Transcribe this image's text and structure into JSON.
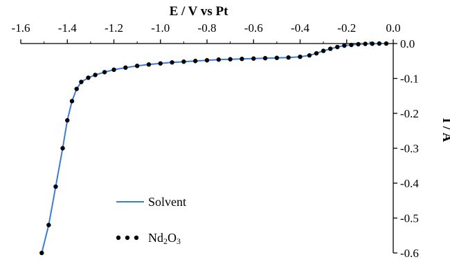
{
  "chart_data": {
    "type": "line",
    "xlabel": "E / V vs Pt",
    "ylabel": "I / A",
    "xlim": [
      -1.6,
      0.0
    ],
    "ylim": [
      -0.6,
      0.0
    ],
    "x_ticks": [
      "-1.6",
      "-1.4",
      "-1.2",
      "-1.0",
      "-0.8",
      "-0.6",
      "-0.4",
      "-0.2",
      "0.0"
    ],
    "y_ticks": [
      "0.0",
      "-0.1",
      "-0.2",
      "-0.3",
      "-0.4",
      "-0.5",
      "-0.6"
    ],
    "x_axis_position": "top",
    "y_axis_position": "right",
    "grid": false,
    "legend_position": "bottom-left",
    "series": [
      {
        "name": "Solvent",
        "style": "solid",
        "color": "#3a7bd5",
        "x": [
          -1.51,
          -1.48,
          -1.45,
          -1.42,
          -1.4,
          -1.38,
          -1.36,
          -1.34,
          -1.31,
          -1.28,
          -1.24,
          -1.2,
          -1.15,
          -1.1,
          -1.05,
          -1.0,
          -0.95,
          -0.9,
          -0.85,
          -0.8,
          -0.75,
          -0.7,
          -0.65,
          -0.6,
          -0.55,
          -0.5,
          -0.45,
          -0.4,
          -0.36,
          -0.33,
          -0.3,
          -0.27,
          -0.24,
          -0.21,
          -0.18,
          -0.15,
          -0.12,
          -0.09,
          -0.06,
          -0.03
        ],
        "y": [
          -0.6,
          -0.52,
          -0.41,
          -0.3,
          -0.22,
          -0.165,
          -0.13,
          -0.11,
          -0.098,
          -0.09,
          -0.082,
          -0.075,
          -0.069,
          -0.064,
          -0.06,
          -0.057,
          -0.054,
          -0.052,
          -0.05,
          -0.048,
          -0.046,
          -0.045,
          -0.044,
          -0.043,
          -0.042,
          -0.041,
          -0.04,
          -0.038,
          -0.034,
          -0.028,
          -0.021,
          -0.015,
          -0.01,
          -0.006,
          -0.004,
          -0.002,
          -0.001,
          -0.0005,
          0.0,
          0.0
        ]
      },
      {
        "name": "Nd₂O₃",
        "style": "dotted",
        "color": "#000000",
        "x": [
          -1.51,
          -1.48,
          -1.45,
          -1.42,
          -1.4,
          -1.38,
          -1.36,
          -1.34,
          -1.31,
          -1.28,
          -1.24,
          -1.2,
          -1.15,
          -1.1,
          -1.05,
          -1.0,
          -0.95,
          -0.9,
          -0.85,
          -0.8,
          -0.75,
          -0.7,
          -0.65,
          -0.6,
          -0.55,
          -0.5,
          -0.45,
          -0.4,
          -0.36,
          -0.33,
          -0.3,
          -0.27,
          -0.24,
          -0.21,
          -0.18,
          -0.15,
          -0.12,
          -0.09,
          -0.06,
          -0.03
        ],
        "y": [
          -0.6,
          -0.52,
          -0.41,
          -0.3,
          -0.22,
          -0.165,
          -0.13,
          -0.11,
          -0.098,
          -0.09,
          -0.082,
          -0.075,
          -0.069,
          -0.064,
          -0.06,
          -0.057,
          -0.054,
          -0.052,
          -0.05,
          -0.048,
          -0.046,
          -0.045,
          -0.044,
          -0.043,
          -0.042,
          -0.041,
          -0.04,
          -0.038,
          -0.034,
          -0.028,
          -0.021,
          -0.015,
          -0.01,
          -0.006,
          -0.004,
          -0.002,
          -0.001,
          -0.0005,
          0.0,
          0.0
        ]
      }
    ],
    "legend": {
      "solvent_label": "Solvent",
      "nd_label_main": "Nd",
      "nd_sub1": "2",
      "nd_label_o": "O",
      "nd_sub2": "3"
    }
  }
}
